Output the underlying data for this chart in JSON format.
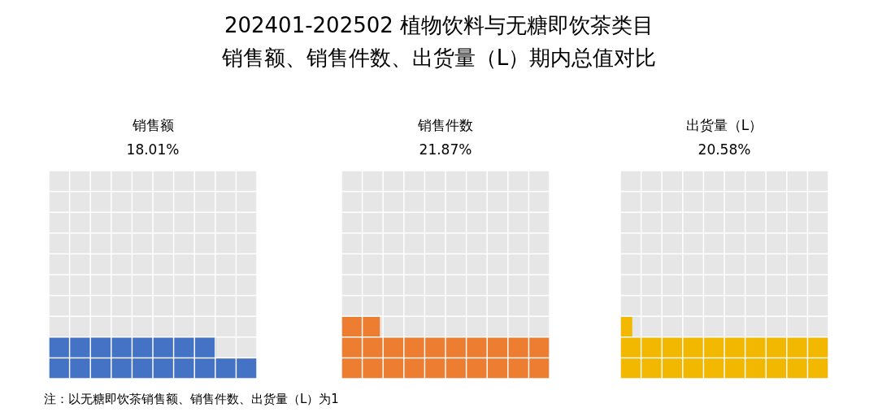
{
  "chart_data": {
    "type": "other",
    "title": "202401-202502 植物饮料与无糖即饮茶类目",
    "subtitle": "销售额、销售件数、出货量（L）期内总值对比",
    "categories": [
      "销售额",
      "销售件数",
      "出货量（L）"
    ],
    "values": [
      18.01,
      21.87,
      20.58
    ],
    "value_labels": [
      "18.01%",
      "21.87%",
      "20.58%"
    ],
    "colors": [
      "#4472c4",
      "#ed7d31",
      "#f2b800"
    ],
    "annotations": [
      "注：以无糖即饮茶销售额、销售件数、出货量（L）为1"
    ]
  }
}
